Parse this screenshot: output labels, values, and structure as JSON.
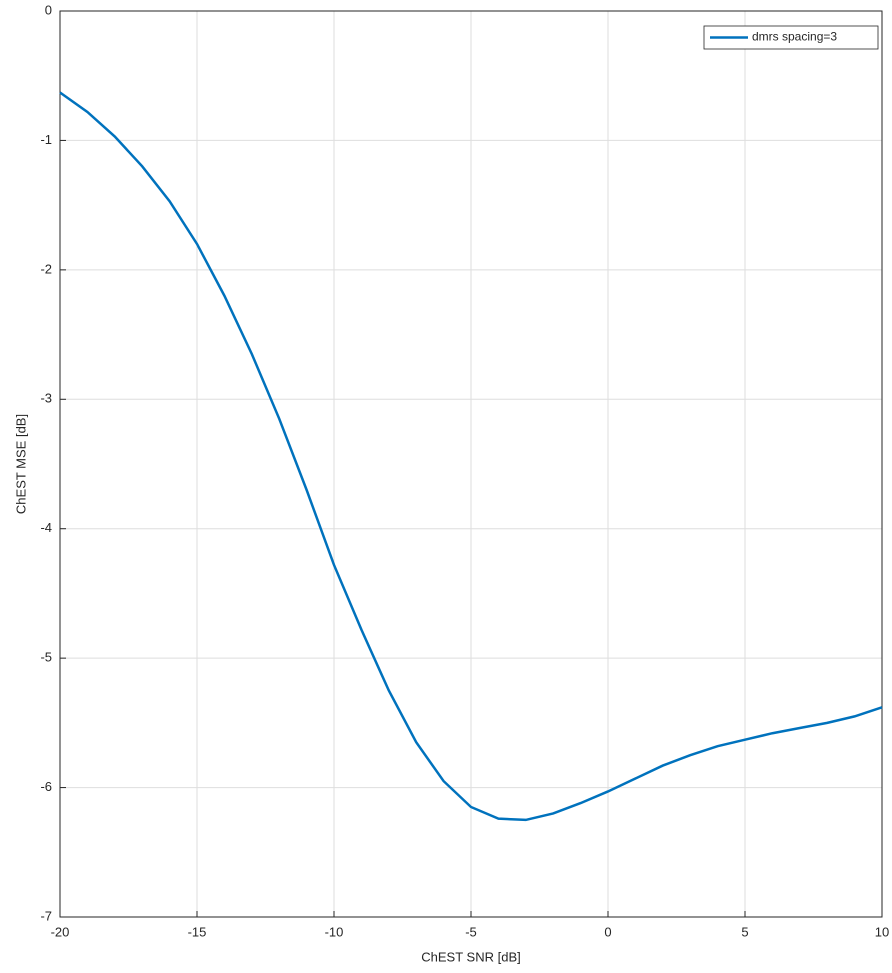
{
  "chart_data": {
    "type": "line",
    "xlabel": "ChEST SNR [dB]",
    "ylabel": "ChEST MSE [dB]",
    "x": [
      -20,
      -19,
      -18,
      -17,
      -16,
      -15,
      -14,
      -13,
      -12,
      -11,
      -10,
      -9,
      -8,
      -7,
      -6,
      -5,
      -4,
      -3,
      -2,
      -1,
      0,
      1,
      2,
      3,
      4,
      5,
      6,
      7,
      8,
      9,
      10
    ],
    "series": [
      {
        "name": "dmrs spacing=3",
        "color": "#0072bd",
        "values": [
          -0.63,
          -0.78,
          -0.97,
          -1.2,
          -1.47,
          -1.8,
          -2.2,
          -2.65,
          -3.15,
          -3.7,
          -4.28,
          -4.78,
          -5.25,
          -5.65,
          -5.95,
          -6.15,
          -6.24,
          -6.25,
          -6.2,
          -6.12,
          -6.03,
          -5.93,
          -5.83,
          -5.75,
          -5.68,
          -5.63,
          -5.58,
          -5.54,
          -5.5,
          -5.45,
          -5.38
        ]
      }
    ],
    "xlim": [
      -20,
      10
    ],
    "xticks": [
      -20,
      -15,
      -10,
      -5,
      0,
      5,
      10
    ],
    "ylim": [
      -7,
      0
    ],
    "yticks": [
      -7,
      -6,
      -5,
      -4,
      -3,
      -2,
      -1,
      0
    ],
    "grid": true,
    "legend": "top-right"
  }
}
